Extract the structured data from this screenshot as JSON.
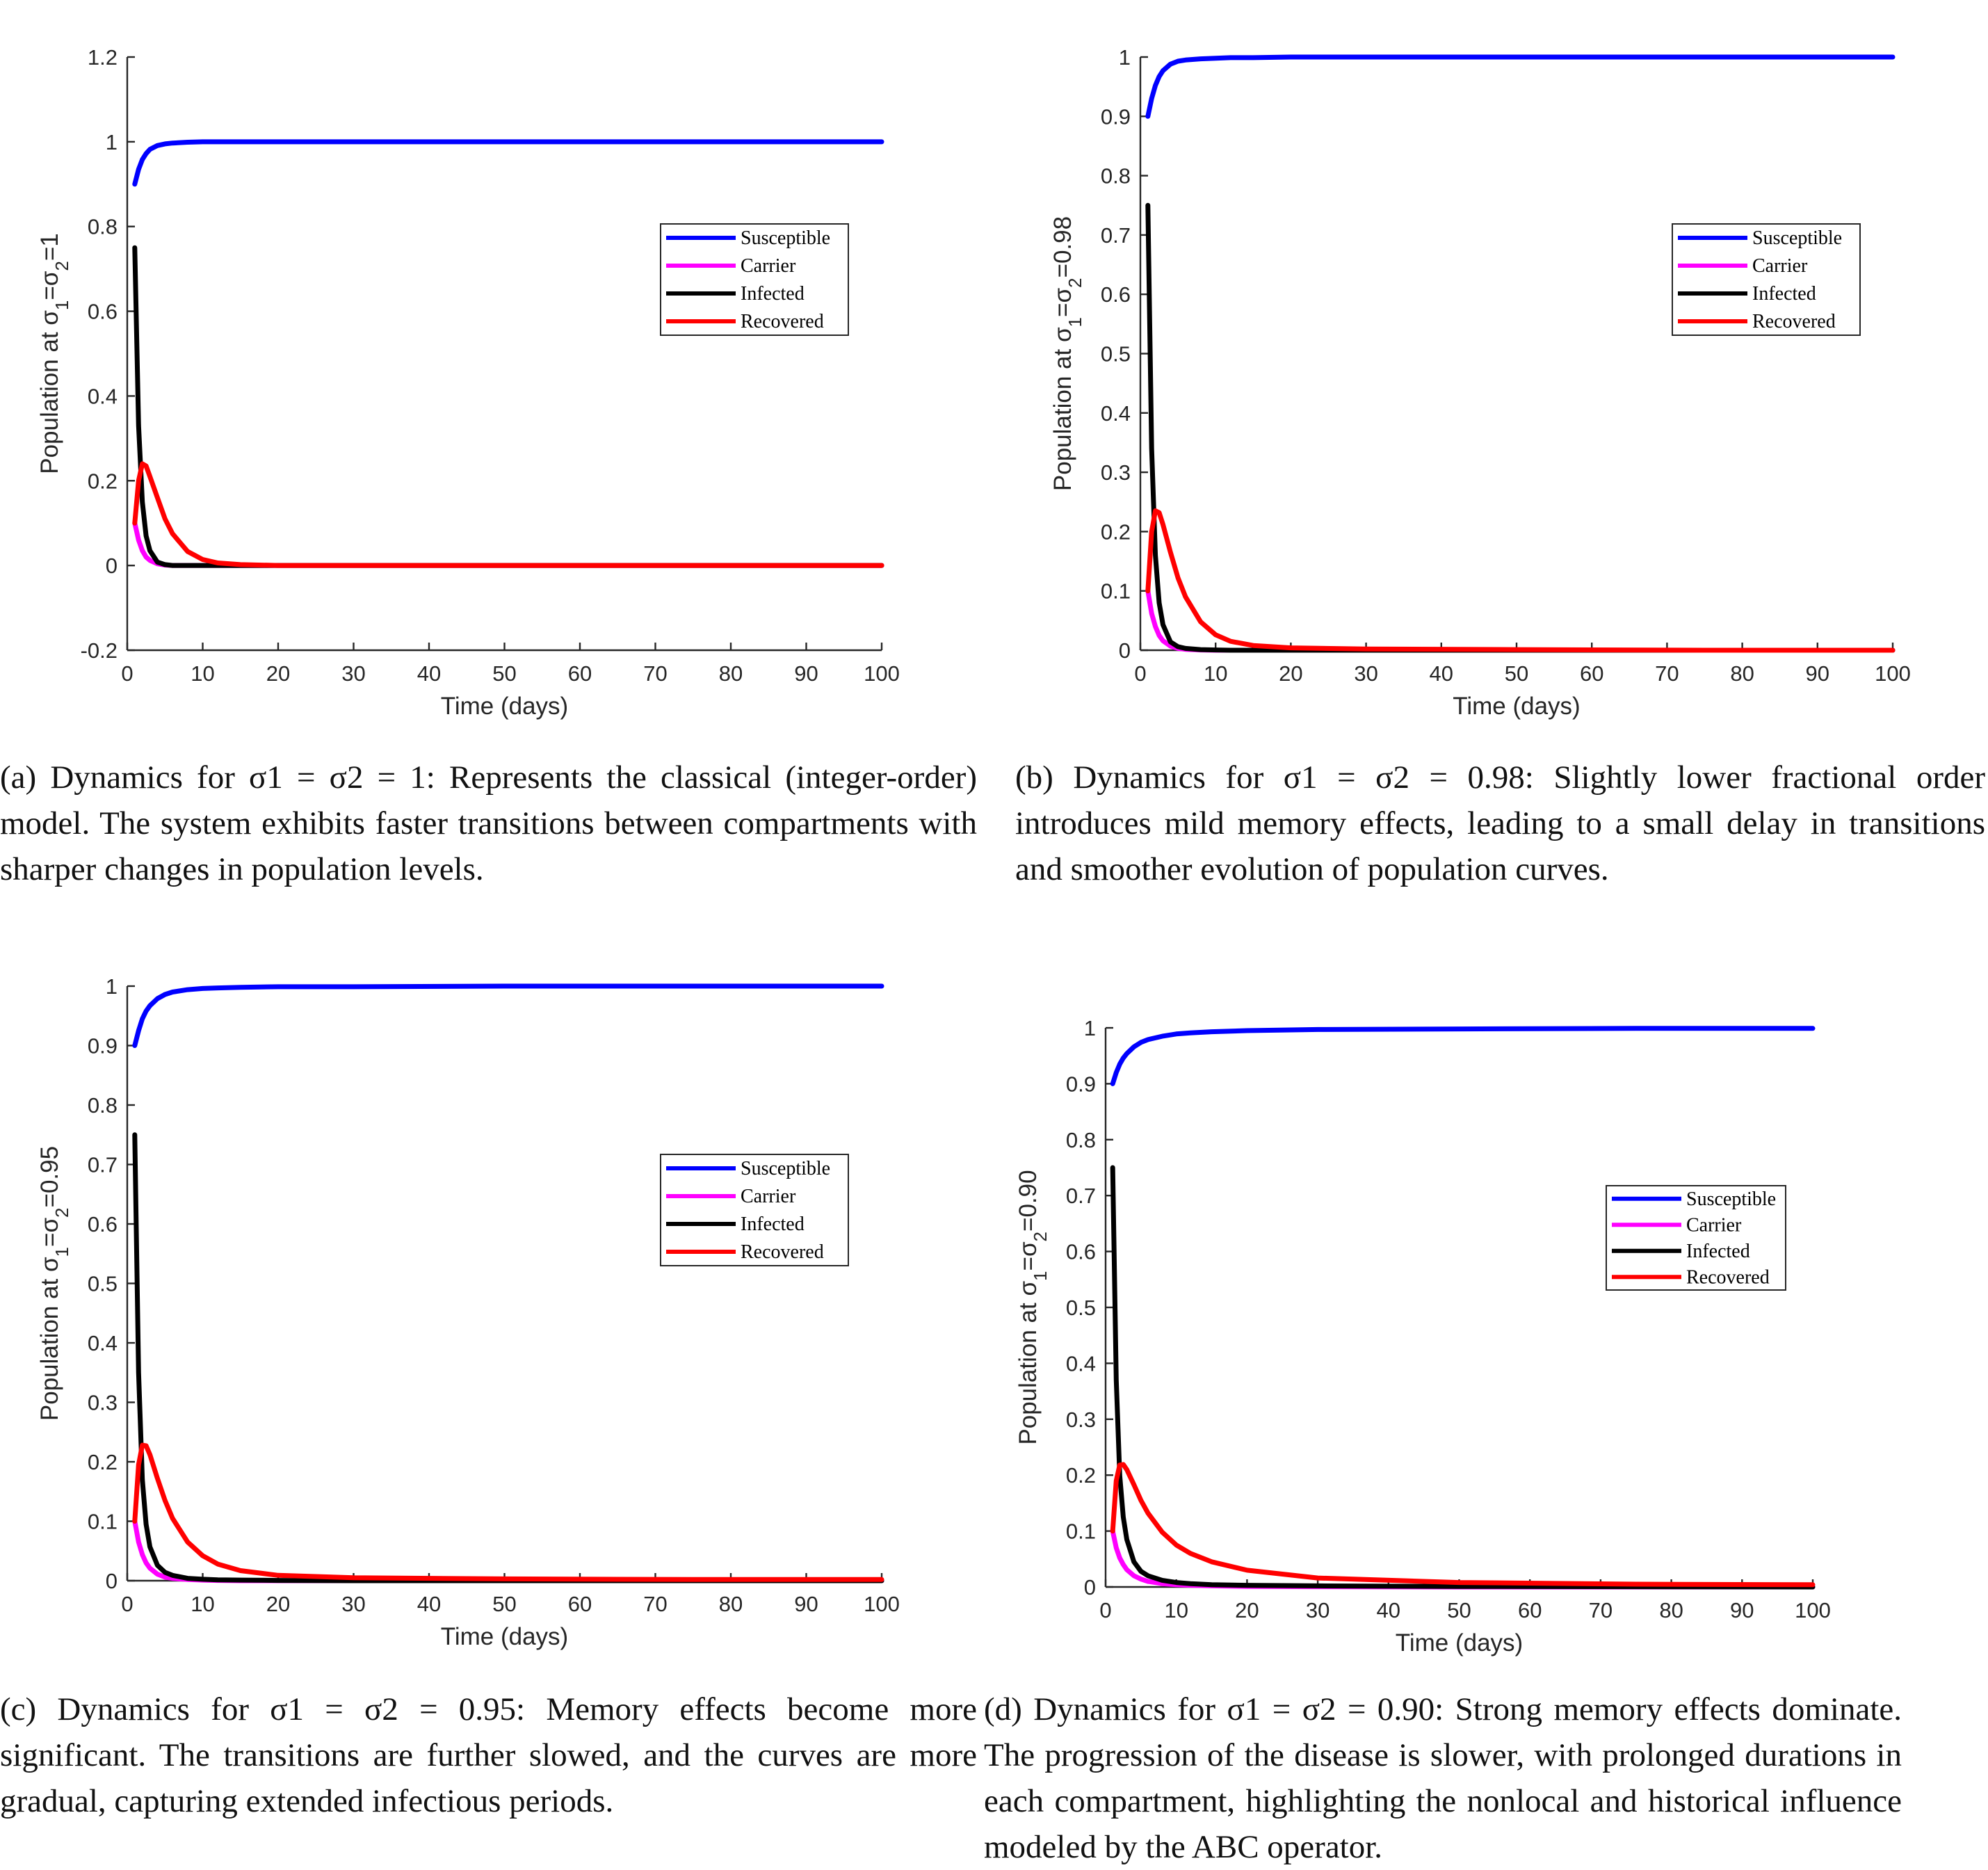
{
  "chart_data": [
    {
      "panel": "a",
      "type": "line",
      "sigma": "1",
      "xlabel": "Time (days)",
      "ylabel": "Population at σ1=σ2=1",
      "xlim": [
        0,
        100
      ],
      "ylim": [
        -0.2,
        1.2
      ],
      "xticks": [
        0,
        10,
        20,
        30,
        40,
        50,
        60,
        70,
        80,
        90,
        100
      ],
      "yticks": [
        -0.2,
        0,
        0.2,
        0.4,
        0.6,
        0.8,
        1,
        1.2
      ],
      "ytick_labels": [
        "-0.2",
        "0",
        "0.2",
        "0.4",
        "0.6",
        "0.8",
        "1",
        "1.2"
      ],
      "x": [
        1,
        1.5,
        2,
        2.5,
        3,
        4,
        5,
        6,
        8,
        10,
        12,
        15,
        20,
        30,
        50,
        75,
        100
      ],
      "series": [
        {
          "name": "Susceptible",
          "color": "#0000FF",
          "values": [
            0.9,
            0.935,
            0.958,
            0.972,
            0.982,
            0.991,
            0.995,
            0.997,
            0.999,
            1.0,
            1.0,
            1.0,
            1.0,
            1.0,
            1.0,
            1.0,
            1.0
          ]
        },
        {
          "name": "Carrier",
          "color": "#FF00FF",
          "values": [
            0.1,
            0.06,
            0.035,
            0.02,
            0.012,
            0.004,
            0.001,
            0.0,
            0.0,
            0.0,
            0.0,
            0.0,
            0.0,
            0.0,
            0.0,
            0.0,
            0.0
          ]
        },
        {
          "name": "Infected",
          "color": "#000000",
          "values": [
            0.75,
            0.33,
            0.15,
            0.07,
            0.035,
            0.008,
            0.002,
            0.0,
            0.0,
            0.0,
            0.0,
            0.0,
            0.0,
            0.0,
            0.0,
            0.0,
            0.0
          ]
        },
        {
          "name": "Recovered",
          "color": "#FF0000",
          "values": [
            0.1,
            0.2,
            0.24,
            0.235,
            0.21,
            0.16,
            0.11,
            0.075,
            0.033,
            0.014,
            0.006,
            0.002,
            0.0,
            0.0,
            0.0,
            0.0,
            0.0
          ]
        }
      ]
    },
    {
      "panel": "b",
      "type": "line",
      "sigma": "0.98",
      "xlabel": "Time (days)",
      "ylabel": "Population at σ1=σ2=0.98",
      "xlim": [
        0,
        100
      ],
      "ylim": [
        0,
        1
      ],
      "xticks": [
        0,
        10,
        20,
        30,
        40,
        50,
        60,
        70,
        80,
        90,
        100
      ],
      "yticks": [
        0,
        0.1,
        0.2,
        0.3,
        0.4,
        0.5,
        0.6,
        0.7,
        0.8,
        0.9,
        1
      ],
      "ytick_labels": [
        "0",
        "0.1",
        "0.2",
        "0.3",
        "0.4",
        "0.5",
        "0.6",
        "0.7",
        "0.8",
        "0.9",
        "1"
      ],
      "x": [
        1,
        1.5,
        2,
        2.5,
        3,
        4,
        5,
        6,
        8,
        10,
        12,
        15,
        20,
        30,
        50,
        75,
        100
      ],
      "series": [
        {
          "name": "Susceptible",
          "color": "#0000FF",
          "values": [
            0.9,
            0.93,
            0.952,
            0.967,
            0.977,
            0.988,
            0.993,
            0.995,
            0.997,
            0.998,
            0.999,
            0.999,
            1.0,
            1.0,
            1.0,
            1.0,
            1.0
          ]
        },
        {
          "name": "Carrier",
          "color": "#FF00FF",
          "values": [
            0.1,
            0.062,
            0.04,
            0.025,
            0.016,
            0.007,
            0.003,
            0.0015,
            0.0005,
            0.0,
            0.0,
            0.0,
            0.0,
            0.0,
            0.0,
            0.0,
            0.0
          ]
        },
        {
          "name": "Infected",
          "color": "#000000",
          "values": [
            0.75,
            0.34,
            0.16,
            0.08,
            0.043,
            0.014,
            0.006,
            0.003,
            0.001,
            0.0005,
            0.0,
            0.0,
            0.0,
            0.0,
            0.0,
            0.0,
            0.0
          ]
        },
        {
          "name": "Recovered",
          "color": "#FF0000",
          "values": [
            0.1,
            0.2,
            0.235,
            0.232,
            0.212,
            0.165,
            0.122,
            0.09,
            0.048,
            0.026,
            0.015,
            0.008,
            0.004,
            0.002,
            0.001,
            0.0,
            0.0
          ]
        }
      ]
    },
    {
      "panel": "c",
      "type": "line",
      "sigma": "0.95",
      "xlabel": "Time (days)",
      "ylabel": "Population at σ1=σ2=0.95",
      "xlim": [
        0,
        100
      ],
      "ylim": [
        0,
        1
      ],
      "xticks": [
        0,
        10,
        20,
        30,
        40,
        50,
        60,
        70,
        80,
        90,
        100
      ],
      "yticks": [
        0,
        0.1,
        0.2,
        0.3,
        0.4,
        0.5,
        0.6,
        0.7,
        0.8,
        0.9,
        1
      ],
      "ytick_labels": [
        "0",
        "0.1",
        "0.2",
        "0.3",
        "0.4",
        "0.5",
        "0.6",
        "0.7",
        "0.8",
        "0.9",
        "1"
      ],
      "x": [
        1,
        1.5,
        2,
        2.5,
        3,
        4,
        5,
        6,
        8,
        10,
        12,
        15,
        20,
        30,
        50,
        75,
        100
      ],
      "series": [
        {
          "name": "Susceptible",
          "color": "#0000FF",
          "values": [
            0.9,
            0.925,
            0.945,
            0.958,
            0.967,
            0.979,
            0.986,
            0.99,
            0.994,
            0.996,
            0.997,
            0.998,
            0.999,
            0.999,
            1.0,
            1.0,
            1.0
          ]
        },
        {
          "name": "Carrier",
          "color": "#FF00FF",
          "values": [
            0.1,
            0.065,
            0.044,
            0.03,
            0.021,
            0.011,
            0.006,
            0.004,
            0.002,
            0.001,
            0.0005,
            0.0,
            0.0,
            0.0,
            0.0,
            0.0,
            0.0
          ]
        },
        {
          "name": "Infected",
          "color": "#000000",
          "values": [
            0.75,
            0.35,
            0.17,
            0.095,
            0.057,
            0.026,
            0.014,
            0.009,
            0.004,
            0.0025,
            0.0015,
            0.001,
            0.0005,
            0.0,
            0.0,
            0.0,
            0.0
          ]
        },
        {
          "name": "Recovered",
          "color": "#FF0000",
          "values": [
            0.1,
            0.195,
            0.228,
            0.227,
            0.212,
            0.172,
            0.135,
            0.105,
            0.065,
            0.042,
            0.028,
            0.017,
            0.009,
            0.005,
            0.003,
            0.002,
            0.002
          ]
        }
      ]
    },
    {
      "panel": "d",
      "type": "line",
      "sigma": "0.90",
      "xlabel": "Time (days)",
      "ylabel": "Population at σ1=σ2=0.90",
      "xlim": [
        0,
        100
      ],
      "ylim": [
        0,
        1
      ],
      "xticks": [
        0,
        10,
        20,
        30,
        40,
        50,
        60,
        70,
        80,
        90,
        100
      ],
      "yticks": [
        0,
        0.1,
        0.2,
        0.3,
        0.4,
        0.5,
        0.6,
        0.7,
        0.8,
        0.9,
        1
      ],
      "ytick_labels": [
        "0",
        "0.1",
        "0.2",
        "0.3",
        "0.4",
        "0.5",
        "0.6",
        "0.7",
        "0.8",
        "0.9",
        "1"
      ],
      "x": [
        1,
        1.5,
        2,
        2.5,
        3,
        4,
        5,
        6,
        8,
        10,
        12,
        15,
        20,
        30,
        50,
        75,
        100
      ],
      "series": [
        {
          "name": "Susceptible",
          "color": "#0000FF",
          "values": [
            0.9,
            0.92,
            0.935,
            0.946,
            0.954,
            0.966,
            0.974,
            0.979,
            0.985,
            0.989,
            0.991,
            0.993,
            0.995,
            0.997,
            0.998,
            0.999,
            0.999
          ]
        },
        {
          "name": "Carrier",
          "color": "#FF00FF",
          "values": [
            0.1,
            0.07,
            0.052,
            0.04,
            0.031,
            0.02,
            0.014,
            0.01,
            0.006,
            0.004,
            0.003,
            0.002,
            0.001,
            0.0005,
            0.0,
            0.0,
            0.0
          ]
        },
        {
          "name": "Infected",
          "color": "#000000",
          "values": [
            0.75,
            0.37,
            0.2,
            0.125,
            0.085,
            0.045,
            0.028,
            0.02,
            0.012,
            0.008,
            0.006,
            0.004,
            0.003,
            0.002,
            0.001,
            0.0005,
            0.0
          ]
        },
        {
          "name": "Recovered",
          "color": "#FF0000",
          "values": [
            0.1,
            0.19,
            0.218,
            0.219,
            0.21,
            0.183,
            0.155,
            0.132,
            0.098,
            0.075,
            0.06,
            0.045,
            0.03,
            0.016,
            0.008,
            0.005,
            0.004
          ]
        }
      ]
    }
  ],
  "captions": {
    "a": "(a) Dynamics for σ1 = σ2 = 1: Represents the classical (integer-order) model. The system exhibits faster transitions between compartments with sharper changes in population levels.",
    "b": "(b) Dynamics for σ1 = σ2 = 0.98: Slightly lower fractional order introduces mild memory effects, leading to a small delay in transitions and smoother evolution of population curves.",
    "c": "(c) Dynamics for σ1 = σ2 = 0.95: Memory effects become more significant. The transitions are further slowed, and the curves are more gradual, capturing extended infectious periods.",
    "d": "(d) Dynamics for σ1 = σ2 = 0.90: Strong memory effects dominate. The progression of the disease is slower, with prolonged durations in each compartment, highlighting the nonlocal and historical influence modeled by the ABC operator."
  }
}
